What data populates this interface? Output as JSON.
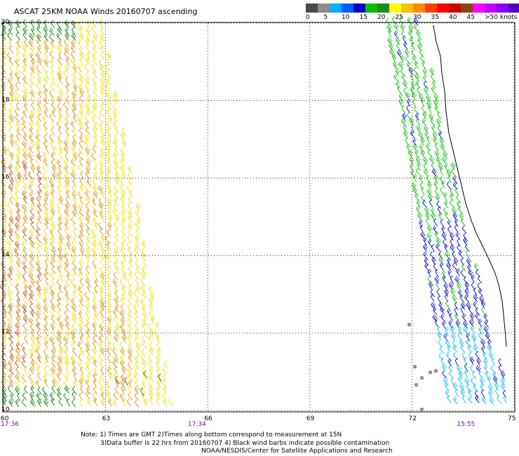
{
  "title": "ASCAT 25KM NOAA Winds 20160707 ascending",
  "map": {
    "lat_min": 10,
    "lat_max": 20,
    "lon_min": 60,
    "lon_max": 75,
    "lat_ticks": [
      "20",
      "18",
      "16",
      "14",
      "12",
      "10"
    ],
    "lon_ticks": [
      "60",
      "63",
      "66",
      "69",
      "72",
      "75"
    ],
    "grid_lats": [
      10,
      12,
      14,
      16,
      18,
      20
    ],
    "grid_lons": [
      60,
      63,
      66,
      69,
      72,
      75
    ],
    "pass_times": [
      {
        "text": "17:36",
        "lon": 60
      },
      {
        "text": "17:34",
        "lon": 65.5
      },
      {
        "text": "15:55",
        "lon": 73.4
      }
    ]
  },
  "legend": {
    "title_unit": ">50 knots",
    "labels": [
      "0",
      "5",
      "10",
      "15",
      "20",
      "25",
      "30",
      "35",
      "40",
      "45",
      ">50 knots"
    ],
    "colors": [
      "#4a4a4a",
      "#8c8c8c",
      "#00b0ff",
      "#0060ff",
      "#0000d0",
      "#00c000",
      "#1e8c1e",
      "#ffff00",
      "#ffc000",
      "#ff8c00",
      "#ff4000",
      "#ff0000",
      "#d00000",
      "#8b4513",
      "#ff00ff",
      "#c000ff",
      "#8a00ff",
      "#5000c0"
    ]
  },
  "notes": [
    "Note: 1) Times are GMT 2)Times along bottom correspond to measurement at 15N",
    "3)Data buffer is 22 hrs from 20160707 4) Black wind barbs indicate possible contamination",
    "NOAA/NESDIS/Center for Satellite Applications and Research"
  ],
  "colors": {
    "grid": "#000000",
    "coast": "#000000",
    "time_label": "#6a1b9a",
    "calm_green": "#008000",
    "moderate_green": "#00c000",
    "light_blue": "#0000cc",
    "cyan": "#00bfff",
    "yellow": "#f0e000",
    "orange": "#e09000",
    "dark_orange": "#c05000"
  }
}
